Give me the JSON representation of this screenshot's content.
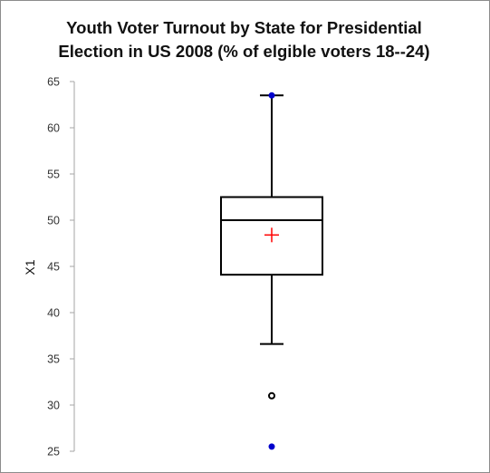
{
  "chart_data": {
    "type": "boxplot",
    "title_line1": "Youth Voter Turnout by State for Presidential",
    "title_line2": "Election in US 2008 (% of elgible voters 18--24)",
    "ylabel": "X1",
    "xlabel": "",
    "ylim": [
      25,
      65
    ],
    "yticks": [
      25,
      30,
      35,
      40,
      45,
      50,
      55,
      60,
      65
    ],
    "grid": false,
    "series": [
      {
        "whisker_low": 36.6,
        "q1": 44.1,
        "median": 50.0,
        "q3": 52.5,
        "whisker_high": 63.5,
        "mean": 48.4,
        "outliers": [
          31.0
        ],
        "min": 25.5,
        "max": 63.5
      }
    ],
    "colors": {
      "box": "#000000",
      "mean_marker": "#ff0000",
      "extreme_points": "#0000cc",
      "outlier": "#000000",
      "axis": "#a6a6a6"
    }
  }
}
